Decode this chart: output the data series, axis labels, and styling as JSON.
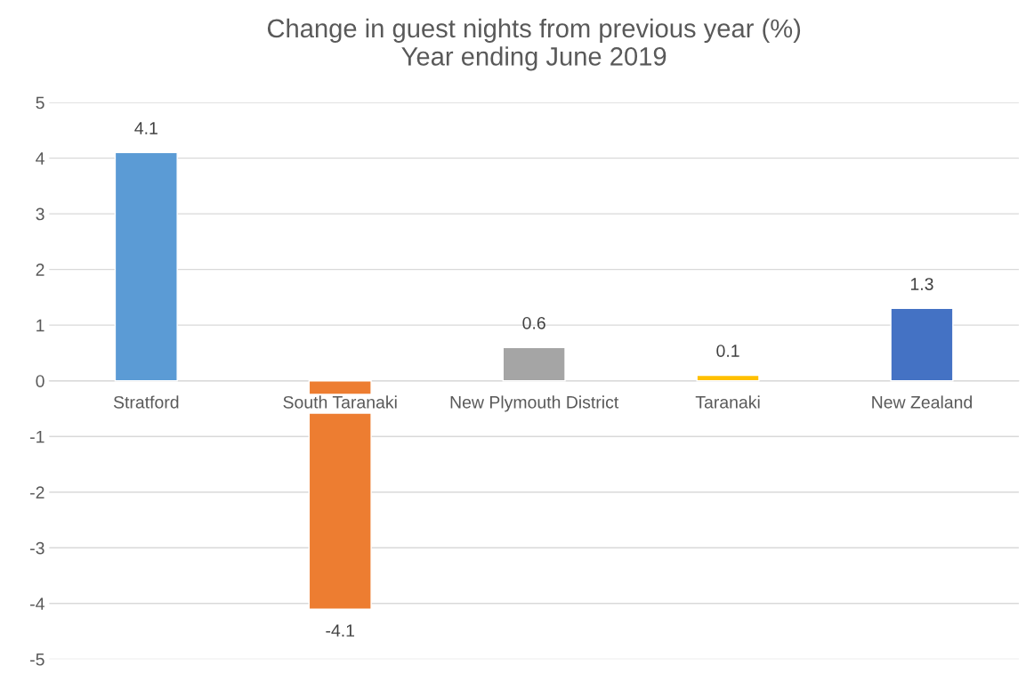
{
  "chart_data": {
    "type": "bar",
    "title": "Change in guest nights from previous year (%)\nYear ending June 2019",
    "categories": [
      "Stratford",
      "South Taranaki",
      "New Plymouth District",
      "Taranaki",
      "New Zealand"
    ],
    "values": [
      4.1,
      -4.1,
      0.6,
      0.1,
      1.3
    ],
    "colors": [
      "#5b9bd5",
      "#ed7d31",
      "#a5a5a5",
      "#ffc000",
      "#4472c4"
    ],
    "ylim": [
      -5,
      5
    ],
    "yticks": [
      -5,
      -4,
      -3,
      -2,
      -1,
      0,
      1,
      2,
      3,
      4,
      5
    ],
    "grid": "y",
    "data_labels": true,
    "legend": false
  }
}
